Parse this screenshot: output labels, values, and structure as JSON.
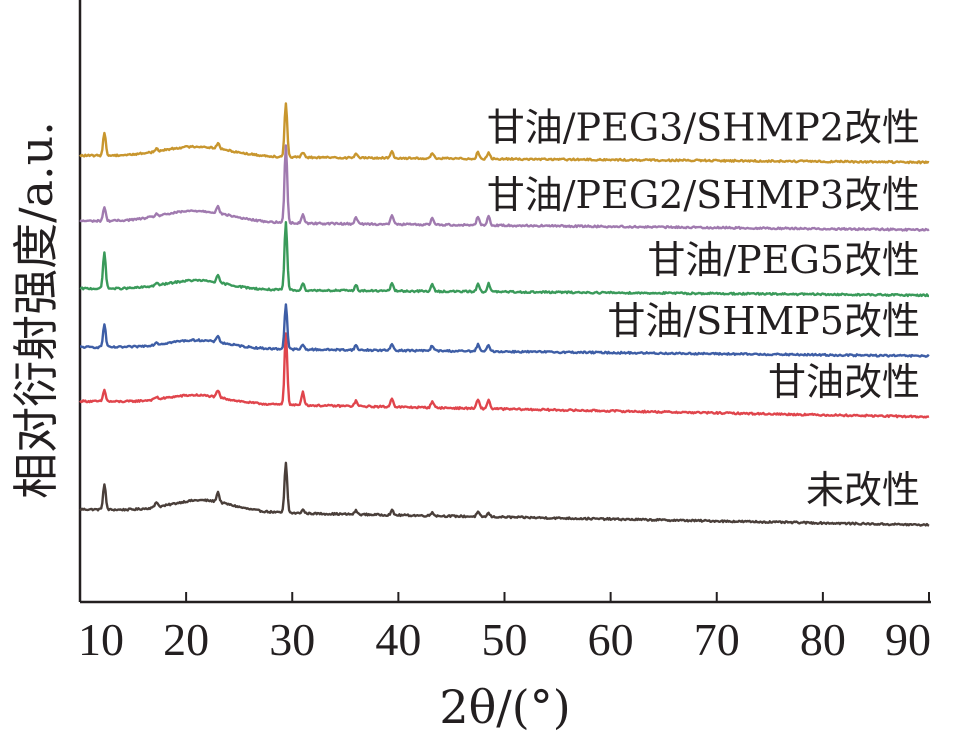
{
  "chart_data": {
    "type": "line",
    "xlabel": "2θ/(°)",
    "ylabel": "相对衍射强度/a.u.",
    "xlim": [
      10,
      90
    ],
    "xticks": [
      "10",
      "20",
      "30",
      "40",
      "50",
      "60",
      "70",
      "80",
      "90"
    ],
    "grid": false,
    "legend": "inline-right-above-each-curve",
    "series": [
      {
        "name": "未改性",
        "color": "#4a3f3a",
        "baseline": 0.035,
        "end": 0.0,
        "hump": 0.025,
        "hump_center": 21.5,
        "hump_width": 4.0,
        "peaks": [
          [
            12.3,
            0.055
          ],
          [
            17.2,
            0.012
          ],
          [
            23.0,
            0.022
          ],
          [
            29.4,
            0.11
          ],
          [
            31.0,
            0.008
          ],
          [
            36.0,
            0.008
          ],
          [
            39.4,
            0.01
          ],
          [
            43.2,
            0.008
          ],
          [
            47.5,
            0.01
          ],
          [
            48.5,
            0.008
          ]
        ]
      },
      {
        "name": "甘油改性",
        "color": "#e0454c",
        "baseline": 0.275,
        "end": 0.24,
        "hump": 0.018,
        "hump_center": 21.0,
        "hump_width": 4.0,
        "peaks": [
          [
            12.3,
            0.025
          ],
          [
            17.2,
            0.005
          ],
          [
            23.0,
            0.015
          ],
          [
            29.4,
            0.16
          ],
          [
            31.0,
            0.03
          ],
          [
            36.0,
            0.012
          ],
          [
            39.4,
            0.02
          ],
          [
            43.2,
            0.015
          ],
          [
            47.5,
            0.02
          ],
          [
            48.5,
            0.02
          ]
        ]
      },
      {
        "name": "甘油/SHMP5改性",
        "color": "#3e5ea6",
        "baseline": 0.395,
        "end": 0.375,
        "hump": 0.018,
        "hump_center": 21.0,
        "hump_width": 4.0,
        "peaks": [
          [
            12.3,
            0.05
          ],
          [
            17.2,
            0.005
          ],
          [
            23.0,
            0.015
          ],
          [
            29.4,
            0.1
          ],
          [
            31.0,
            0.01
          ],
          [
            36.0,
            0.01
          ],
          [
            39.4,
            0.015
          ],
          [
            43.2,
            0.012
          ],
          [
            47.5,
            0.015
          ],
          [
            48.5,
            0.015
          ]
        ]
      },
      {
        "name": "甘油/PEG5改性",
        "color": "#3a9a5a",
        "baseline": 0.525,
        "end": 0.51,
        "hump": 0.02,
        "hump_center": 21.0,
        "hump_width": 4.0,
        "peaks": [
          [
            12.3,
            0.08
          ],
          [
            17.2,
            0.005
          ],
          [
            23.0,
            0.015
          ],
          [
            29.4,
            0.15
          ],
          [
            31.0,
            0.015
          ],
          [
            36.0,
            0.012
          ],
          [
            39.4,
            0.018
          ],
          [
            43.2,
            0.015
          ],
          [
            47.5,
            0.018
          ],
          [
            48.5,
            0.018
          ]
        ]
      },
      {
        "name": "甘油/PEG2/SHMP3改性",
        "color": "#a07aaf",
        "baseline": 0.675,
        "end": 0.655,
        "hump": 0.025,
        "hump_center": 21.0,
        "hump_width": 4.5,
        "peaks": [
          [
            12.3,
            0.03
          ],
          [
            17.2,
            0.005
          ],
          [
            23.0,
            0.015
          ],
          [
            29.4,
            0.17
          ],
          [
            31.0,
            0.02
          ],
          [
            36.0,
            0.015
          ],
          [
            39.4,
            0.02
          ],
          [
            43.2,
            0.015
          ],
          [
            47.5,
            0.02
          ],
          [
            48.5,
            0.02
          ]
        ]
      },
      {
        "name": "甘油/PEG3/SHMP2改性",
        "color": "#c8962e",
        "baseline": 0.82,
        "end": 0.805,
        "hump": 0.022,
        "hump_center": 21.0,
        "hump_width": 4.5,
        "peaks": [
          [
            12.3,
            0.05
          ],
          [
            17.2,
            0.005
          ],
          [
            23.0,
            0.012
          ],
          [
            29.4,
            0.12
          ],
          [
            31.0,
            0.01
          ],
          [
            36.0,
            0.01
          ],
          [
            39.4,
            0.015
          ],
          [
            43.2,
            0.012
          ],
          [
            47.5,
            0.015
          ],
          [
            48.5,
            0.015
          ]
        ]
      }
    ]
  }
}
